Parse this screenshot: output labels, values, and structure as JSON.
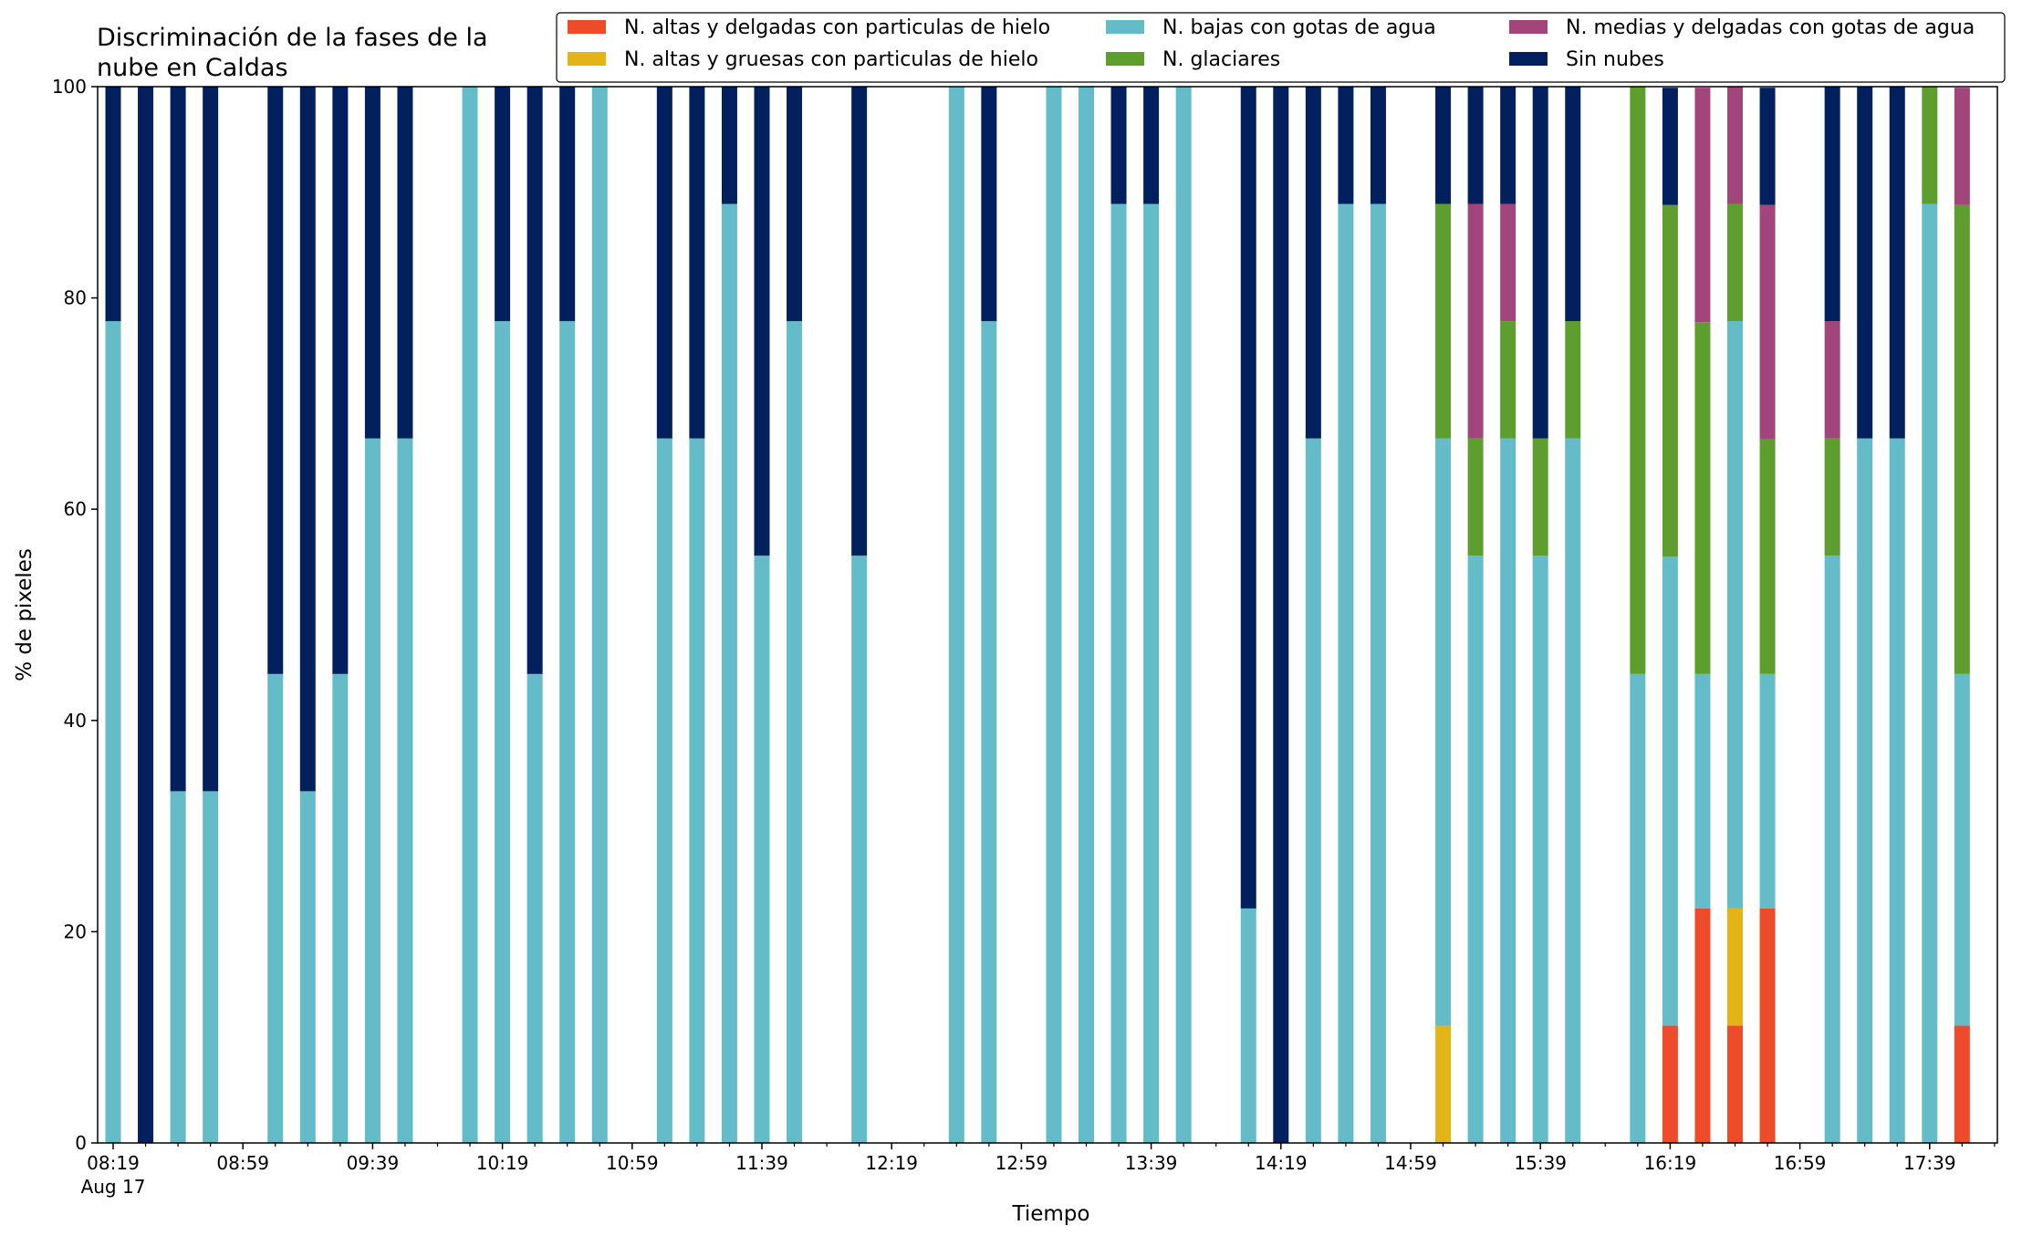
{
  "chart_data": {
    "type": "bar",
    "stacked": true,
    "title_lines": [
      "Discriminación de la fases de la",
      "nube en Caldas"
    ],
    "xlabel": "Tiempo",
    "ylabel": "% de pixeles",
    "ylim": [
      0,
      100
    ],
    "y_ticks": [
      0,
      20,
      40,
      60,
      80,
      100
    ],
    "x_tick_labels": [
      "08:19",
      "08:59",
      "09:39",
      "10:19",
      "10:59",
      "11:39",
      "12:19",
      "12:59",
      "13:39",
      "14:19",
      "14:59",
      "15:39",
      "16:19",
      "16:59",
      "17:39"
    ],
    "x_date_label": "Aug 17",
    "minutes_start": "08:19",
    "slot_minutes": 10,
    "legend_position": "top-right",
    "legend_columns": 3,
    "series": [
      {
        "name": "N. altas y delgadas con particulas de hielo",
        "color": "#ee4b2b"
      },
      {
        "name": "N. altas y gruesas con particulas de hielo",
        "color": "#e3b418"
      },
      {
        "name": "N. bajas con gotas de agua",
        "color": "#64bcc8"
      },
      {
        "name": "N. glaciares",
        "color": "#5e9e2e"
      },
      {
        "name": "N. medias y delgadas con gotas de agua",
        "color": "#a2457a"
      },
      {
        "name": "Sin nubes",
        "color": "#03205e"
      }
    ],
    "bars": [
      {
        "time": "08:19",
        "values": [
          0,
          0,
          77.8,
          0,
          0,
          22.2
        ]
      },
      {
        "time": "08:29",
        "values": [
          0,
          0,
          0,
          0,
          0,
          100
        ]
      },
      {
        "time": "08:39",
        "values": [
          0,
          0,
          33.3,
          0,
          0,
          66.7
        ]
      },
      {
        "time": "08:49",
        "values": [
          0,
          0,
          33.3,
          0,
          0,
          66.7
        ]
      },
      {
        "time": "09:09",
        "values": [
          0,
          0,
          44.4,
          0,
          0,
          55.6
        ]
      },
      {
        "time": "09:19",
        "values": [
          0,
          0,
          33.3,
          0,
          0,
          66.7
        ]
      },
      {
        "time": "09:29",
        "values": [
          0,
          0,
          44.4,
          0,
          0,
          55.6
        ]
      },
      {
        "time": "09:39",
        "values": [
          0,
          0,
          66.7,
          0,
          0,
          33.3
        ]
      },
      {
        "time": "09:49",
        "values": [
          0,
          0,
          66.7,
          0,
          0,
          33.3
        ]
      },
      {
        "time": "10:09",
        "values": [
          0,
          0,
          100,
          0,
          0,
          0
        ]
      },
      {
        "time": "10:19",
        "values": [
          0,
          0,
          77.8,
          0,
          0,
          22.2
        ]
      },
      {
        "time": "10:29",
        "values": [
          0,
          0,
          44.4,
          0,
          0,
          55.6
        ]
      },
      {
        "time": "10:39",
        "values": [
          0,
          0,
          77.8,
          0,
          0,
          22.2
        ]
      },
      {
        "time": "10:49",
        "values": [
          0,
          0,
          100,
          0,
          0,
          0
        ]
      },
      {
        "time": "11:09",
        "values": [
          0,
          0,
          66.7,
          0,
          0,
          33.3
        ]
      },
      {
        "time": "11:19",
        "values": [
          0,
          0,
          66.7,
          0,
          0,
          33.3
        ]
      },
      {
        "time": "11:29",
        "values": [
          0,
          0,
          88.9,
          0,
          0,
          11.1
        ]
      },
      {
        "time": "11:39",
        "values": [
          0,
          0,
          55.6,
          0,
          0,
          44.4
        ]
      },
      {
        "time": "11:49",
        "values": [
          0,
          0,
          77.8,
          0,
          0,
          22.2
        ]
      },
      {
        "time": "12:09",
        "values": [
          0,
          0,
          55.6,
          0,
          0,
          44.4
        ]
      },
      {
        "time": "12:39",
        "values": [
          0,
          0,
          100,
          0,
          0,
          0
        ]
      },
      {
        "time": "12:49",
        "values": [
          0,
          0,
          77.8,
          0,
          0,
          22.2
        ]
      },
      {
        "time": "13:09",
        "values": [
          0,
          0,
          100,
          0,
          0,
          0
        ]
      },
      {
        "time": "13:19",
        "values": [
          0,
          0,
          100,
          0,
          0,
          0
        ]
      },
      {
        "time": "13:29",
        "values": [
          0,
          0,
          88.9,
          0,
          0,
          11.1
        ]
      },
      {
        "time": "13:39",
        "values": [
          0,
          0,
          88.9,
          0,
          0,
          11.1
        ]
      },
      {
        "time": "13:49",
        "values": [
          0,
          0,
          100,
          0,
          0,
          0
        ]
      },
      {
        "time": "14:09",
        "values": [
          0,
          0,
          22.2,
          0,
          0,
          77.8
        ]
      },
      {
        "time": "14:19",
        "values": [
          0,
          0,
          0,
          0,
          0,
          100
        ]
      },
      {
        "time": "14:29",
        "values": [
          0,
          0,
          66.7,
          0,
          0,
          33.3
        ]
      },
      {
        "time": "14:39",
        "values": [
          0,
          0,
          88.9,
          0,
          0,
          11.1
        ]
      },
      {
        "time": "14:49",
        "values": [
          0,
          0,
          88.9,
          0,
          0,
          11.1
        ]
      },
      {
        "time": "15:09",
        "values": [
          0,
          11.1,
          55.6,
          22.2,
          0,
          11.1
        ]
      },
      {
        "time": "15:19",
        "values": [
          0,
          0,
          55.6,
          11.1,
          22.2,
          11.1
        ]
      },
      {
        "time": "15:29",
        "values": [
          0,
          0,
          66.7,
          11.1,
          11.1,
          11.1
        ]
      },
      {
        "time": "15:39",
        "values": [
          0,
          0,
          55.6,
          11.1,
          0,
          33.3
        ]
      },
      {
        "time": "15:49",
        "values": [
          0,
          0,
          66.7,
          11.1,
          0,
          22.2
        ]
      },
      {
        "time": "16:09",
        "values": [
          0,
          0,
          44.4,
          55.6,
          0,
          0
        ]
      },
      {
        "time": "16:19",
        "values": [
          11.1,
          0,
          44.4,
          33.3,
          0,
          11.1
        ]
      },
      {
        "time": "16:29",
        "values": [
          22.2,
          0,
          22.2,
          33.3,
          22.2,
          0
        ]
      },
      {
        "time": "16:39",
        "values": [
          11.1,
          11.1,
          55.6,
          11.1,
          11.1,
          0
        ]
      },
      {
        "time": "16:49",
        "values": [
          22.2,
          0,
          22.2,
          22.2,
          22.2,
          11.1
        ]
      },
      {
        "time": "17:09",
        "values": [
          0,
          0,
          55.6,
          11.1,
          11.1,
          22.2
        ]
      },
      {
        "time": "17:19",
        "values": [
          0,
          0,
          66.7,
          0,
          0,
          33.3
        ]
      },
      {
        "time": "17:29",
        "values": [
          0,
          0,
          66.7,
          0,
          0,
          33.3
        ]
      },
      {
        "time": "17:39",
        "values": [
          0,
          0,
          88.9,
          11.1,
          0,
          0
        ]
      },
      {
        "time": "17:49",
        "values": [
          11.1,
          0,
          33.3,
          44.4,
          11.1,
          0
        ]
      }
    ]
  }
}
